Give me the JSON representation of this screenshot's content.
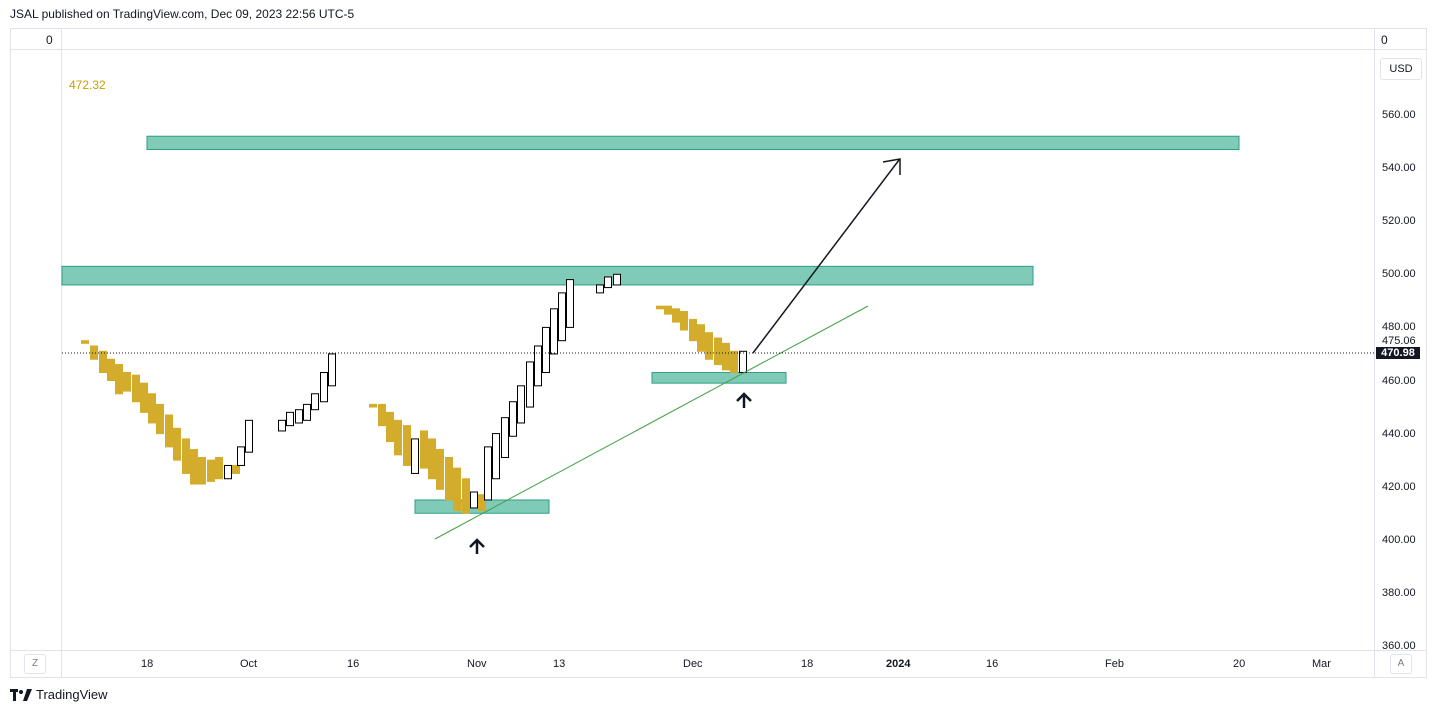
{
  "header": {
    "publish_text": "JSAL published on TradingView.com, Dec 09, 2023 22:56 UTC-5"
  },
  "pane": {
    "left_top_value": "0",
    "right_top_value": "0"
  },
  "indicator": {
    "value_label": "472.32",
    "color": "#c8a000"
  },
  "price_scale": {
    "currency_button": "USD",
    "labels": [
      "560.00",
      "540.00",
      "520.00",
      "500.00",
      "480.00",
      "475.06",
      "460.00",
      "440.00",
      "420.00",
      "400.00",
      "380.00",
      "360.00"
    ],
    "last_price": "470.98"
  },
  "time_scale": {
    "labels": [
      "18",
      "Oct",
      "16",
      "Nov",
      "13",
      "Dec",
      "18",
      "2024",
      "16",
      "Feb",
      "20",
      "Mar"
    ],
    "bold_label": "2024",
    "left_button": "Z",
    "right_button": "A"
  },
  "footer": {
    "brand": "TradingView"
  },
  "colors": {
    "up_candle_fill": "#ffffff",
    "up_candle_border": "#000000",
    "down_candle": "#d4ac2b",
    "zone_fill": "#80cbb8",
    "zone_border": "#2e9e87",
    "trendline": "#43a047",
    "arrow": "#131722"
  },
  "chart_data": {
    "type": "candlestick",
    "y_axis_range": [
      360,
      570
    ],
    "zones": [
      {
        "low": 547,
        "high": 552,
        "from": "Sep 18",
        "to": "Feb 20"
      },
      {
        "low": 496,
        "high": 503,
        "from": "Sep 05",
        "to": "Jan 20"
      },
      {
        "low": 410,
        "high": 415,
        "from": "Oct 27",
        "to": "Nov 11"
      },
      {
        "low": 459,
        "high": 463,
        "from": "Nov 28",
        "to": "Dec 14"
      }
    ],
    "price_line": 472
  }
}
